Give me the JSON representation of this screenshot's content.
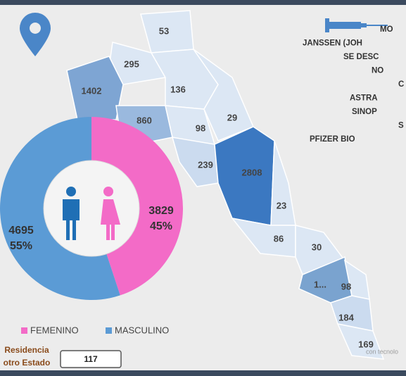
{
  "map": {
    "regions": [
      {
        "value": 53,
        "color": "#dce7f4"
      },
      {
        "value": 295,
        "color": "#dce7f4"
      },
      {
        "value": 1402,
        "color": "#7ea5d3"
      },
      {
        "value": 136,
        "color": "#dce7f4"
      },
      {
        "value": 860,
        "color": "#9ab9de"
      },
      {
        "value": 98,
        "color": "#dce7f4"
      },
      {
        "value": 29,
        "color": "#dce7f4"
      },
      {
        "value": 239,
        "color": "#cbdbef"
      },
      {
        "value": 2808,
        "color": "#3b78c1"
      },
      {
        "value": 23,
        "color": "#dce7f4"
      },
      {
        "value": 86,
        "color": "#dce7f4"
      },
      {
        "value": 30,
        "color": "#dce7f4"
      },
      {
        "label": "1...",
        "color": "#7aa3cf"
      },
      {
        "value": 98,
        "color": "#dce7f4"
      },
      {
        "value": 184,
        "color": "#cbdbef"
      },
      {
        "value": 169,
        "color": "#dce7f4"
      }
    ],
    "watermark": "con tecnolo"
  },
  "vaccines": [
    "MO",
    "JANSSEN (JOH",
    "SE DESC",
    "NO",
    "C",
    "ASTRA",
    "SINOP",
    "S",
    "PFIZER BIO"
  ],
  "chart_data": {
    "type": "pie",
    "categories": [
      "FEMENINO",
      "MASCULINO"
    ],
    "values": [
      3829,
      4695
    ],
    "shares": [
      45,
      55
    ],
    "share_labels": [
      "45%",
      "55%"
    ],
    "colors": [
      "#f36bc7",
      "#5b9bd5"
    ],
    "legend": "bottom"
  },
  "residence": {
    "label": [
      "Residencia",
      "otro Estado"
    ],
    "value": 117
  }
}
